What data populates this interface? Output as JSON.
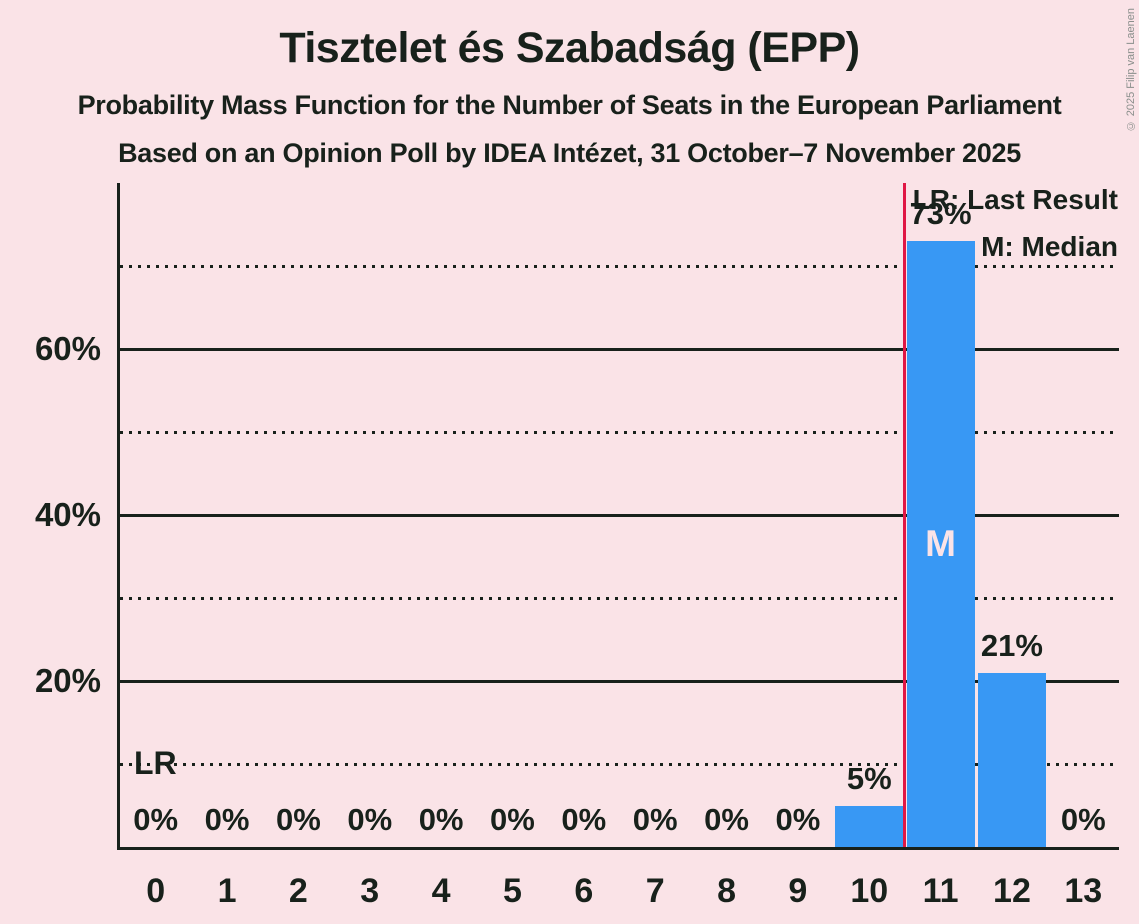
{
  "title": "Tisztelet és Szabadság (EPP)",
  "subtitle1": "Probability Mass Function for the Number of Seats in the European Parliament",
  "subtitle2": "Based on an Opinion Poll by IDEA Intézet, 31 October–7 November 2025",
  "copyright": "© 2025 Filip van Laenen",
  "legend": {
    "lr": "LR: Last Result",
    "m": "M: Median"
  },
  "annotations": {
    "lr_label": "LR",
    "median_label": "M"
  },
  "colors": {
    "background": "#fae3e7",
    "bar": "#3898f4",
    "last_result_line": "#e01745",
    "text": "#18211b",
    "median_text": "#fae3e7"
  },
  "chart_data": {
    "type": "bar",
    "title": "Tisztelet és Szabadság (EPP)",
    "subtitle": "Probability Mass Function for the Number of Seats in the European Parliament",
    "source_line": "Based on an Opinion Poll by IDEA Intézet, 31 October–7 November 2025",
    "categories": [
      0,
      1,
      2,
      3,
      4,
      5,
      6,
      7,
      8,
      9,
      10,
      11,
      12,
      13
    ],
    "values": [
      0,
      0,
      0,
      0,
      0,
      0,
      0,
      0,
      0,
      0,
      5,
      73,
      21,
      0
    ],
    "bar_labels": [
      "0%",
      "0%",
      "0%",
      "0%",
      "0%",
      "0%",
      "0%",
      "0%",
      "0%",
      "0%",
      "5%",
      "73%",
      "21%",
      "0%"
    ],
    "xlabel": "",
    "ylabel": "",
    "ylim": [
      0,
      80
    ],
    "yticks": [
      {
        "value": 20,
        "label": "20%"
      },
      {
        "value": 40,
        "label": "40%"
      },
      {
        "value": 60,
        "label": "60%"
      }
    ],
    "gridlines": {
      "solid": [
        20,
        40,
        60
      ],
      "dotted": [
        10,
        30,
        50,
        70
      ]
    },
    "median_seat": 11,
    "last_result_marker_x": 10.5,
    "legend_position": "top-right"
  }
}
